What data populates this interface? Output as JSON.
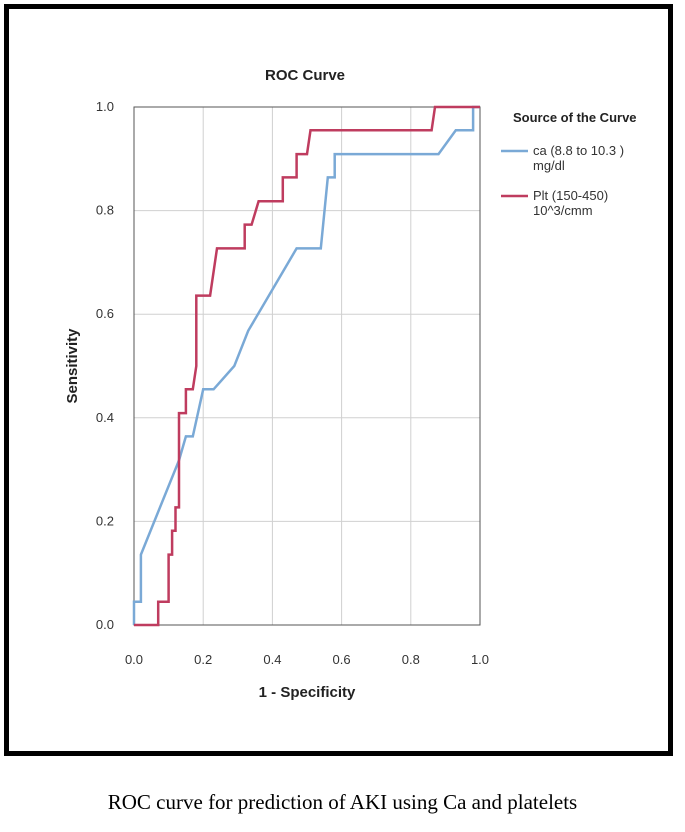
{
  "caption": "ROC curve for prediction of AKI using Ca and platelets",
  "chart_data": {
    "type": "line",
    "title": "ROC Curve",
    "xlabel": "1 - Specificity",
    "ylabel": "Sensitivity",
    "xlim": [
      0,
      1
    ],
    "ylim": [
      0,
      1
    ],
    "xticks": [
      "0.0",
      "0.2",
      "0.4",
      "0.6",
      "0.8",
      "1.0"
    ],
    "yticks": [
      "0.0",
      "0.2",
      "0.4",
      "0.6",
      "0.8",
      "1.0"
    ],
    "grid": true,
    "legend": {
      "title": "Source of the Curve",
      "placement": "right"
    },
    "series": [
      {
        "name": "ca (8.8 to 10.3 ) mg/dl",
        "legend_lines": [
          "ca (8.8 to 10.3 )",
          "mg/dl"
        ],
        "color": "#7aa9d6",
        "points": [
          [
            0,
            0
          ],
          [
            0,
            0.045
          ],
          [
            0.02,
            0.045
          ],
          [
            0.02,
            0.136
          ],
          [
            0.13,
            0.318
          ],
          [
            0.15,
            0.364
          ],
          [
            0.17,
            0.364
          ],
          [
            0.2,
            0.455
          ],
          [
            0.23,
            0.455
          ],
          [
            0.29,
            0.5
          ],
          [
            0.33,
            0.568
          ],
          [
            0.47,
            0.727
          ],
          [
            0.54,
            0.727
          ],
          [
            0.56,
            0.864
          ],
          [
            0.58,
            0.864
          ],
          [
            0.58,
            0.909
          ],
          [
            0.88,
            0.909
          ],
          [
            0.93,
            0.955
          ],
          [
            0.98,
            0.955
          ],
          [
            0.98,
            1.0
          ],
          [
            1.0,
            1.0
          ]
        ]
      },
      {
        "name": "Plt (150-450) 10^3/cmm",
        "legend_lines": [
          "Plt (150-450)",
          "10^3/cmm"
        ],
        "color": "#bf3c5f",
        "points": [
          [
            0,
            0
          ],
          [
            0.07,
            0
          ],
          [
            0.07,
            0.045
          ],
          [
            0.1,
            0.045
          ],
          [
            0.1,
            0.136
          ],
          [
            0.11,
            0.136
          ],
          [
            0.11,
            0.182
          ],
          [
            0.12,
            0.182
          ],
          [
            0.12,
            0.227
          ],
          [
            0.13,
            0.227
          ],
          [
            0.13,
            0.409
          ],
          [
            0.15,
            0.409
          ],
          [
            0.15,
            0.455
          ],
          [
            0.17,
            0.455
          ],
          [
            0.18,
            0.5
          ],
          [
            0.18,
            0.636
          ],
          [
            0.22,
            0.636
          ],
          [
            0.24,
            0.727
          ],
          [
            0.32,
            0.727
          ],
          [
            0.32,
            0.773
          ],
          [
            0.34,
            0.773
          ],
          [
            0.36,
            0.818
          ],
          [
            0.43,
            0.818
          ],
          [
            0.43,
            0.864
          ],
          [
            0.47,
            0.864
          ],
          [
            0.47,
            0.909
          ],
          [
            0.5,
            0.909
          ],
          [
            0.51,
            0.955
          ],
          [
            0.86,
            0.955
          ],
          [
            0.87,
            1.0
          ],
          [
            1.0,
            1.0
          ]
        ]
      }
    ]
  }
}
